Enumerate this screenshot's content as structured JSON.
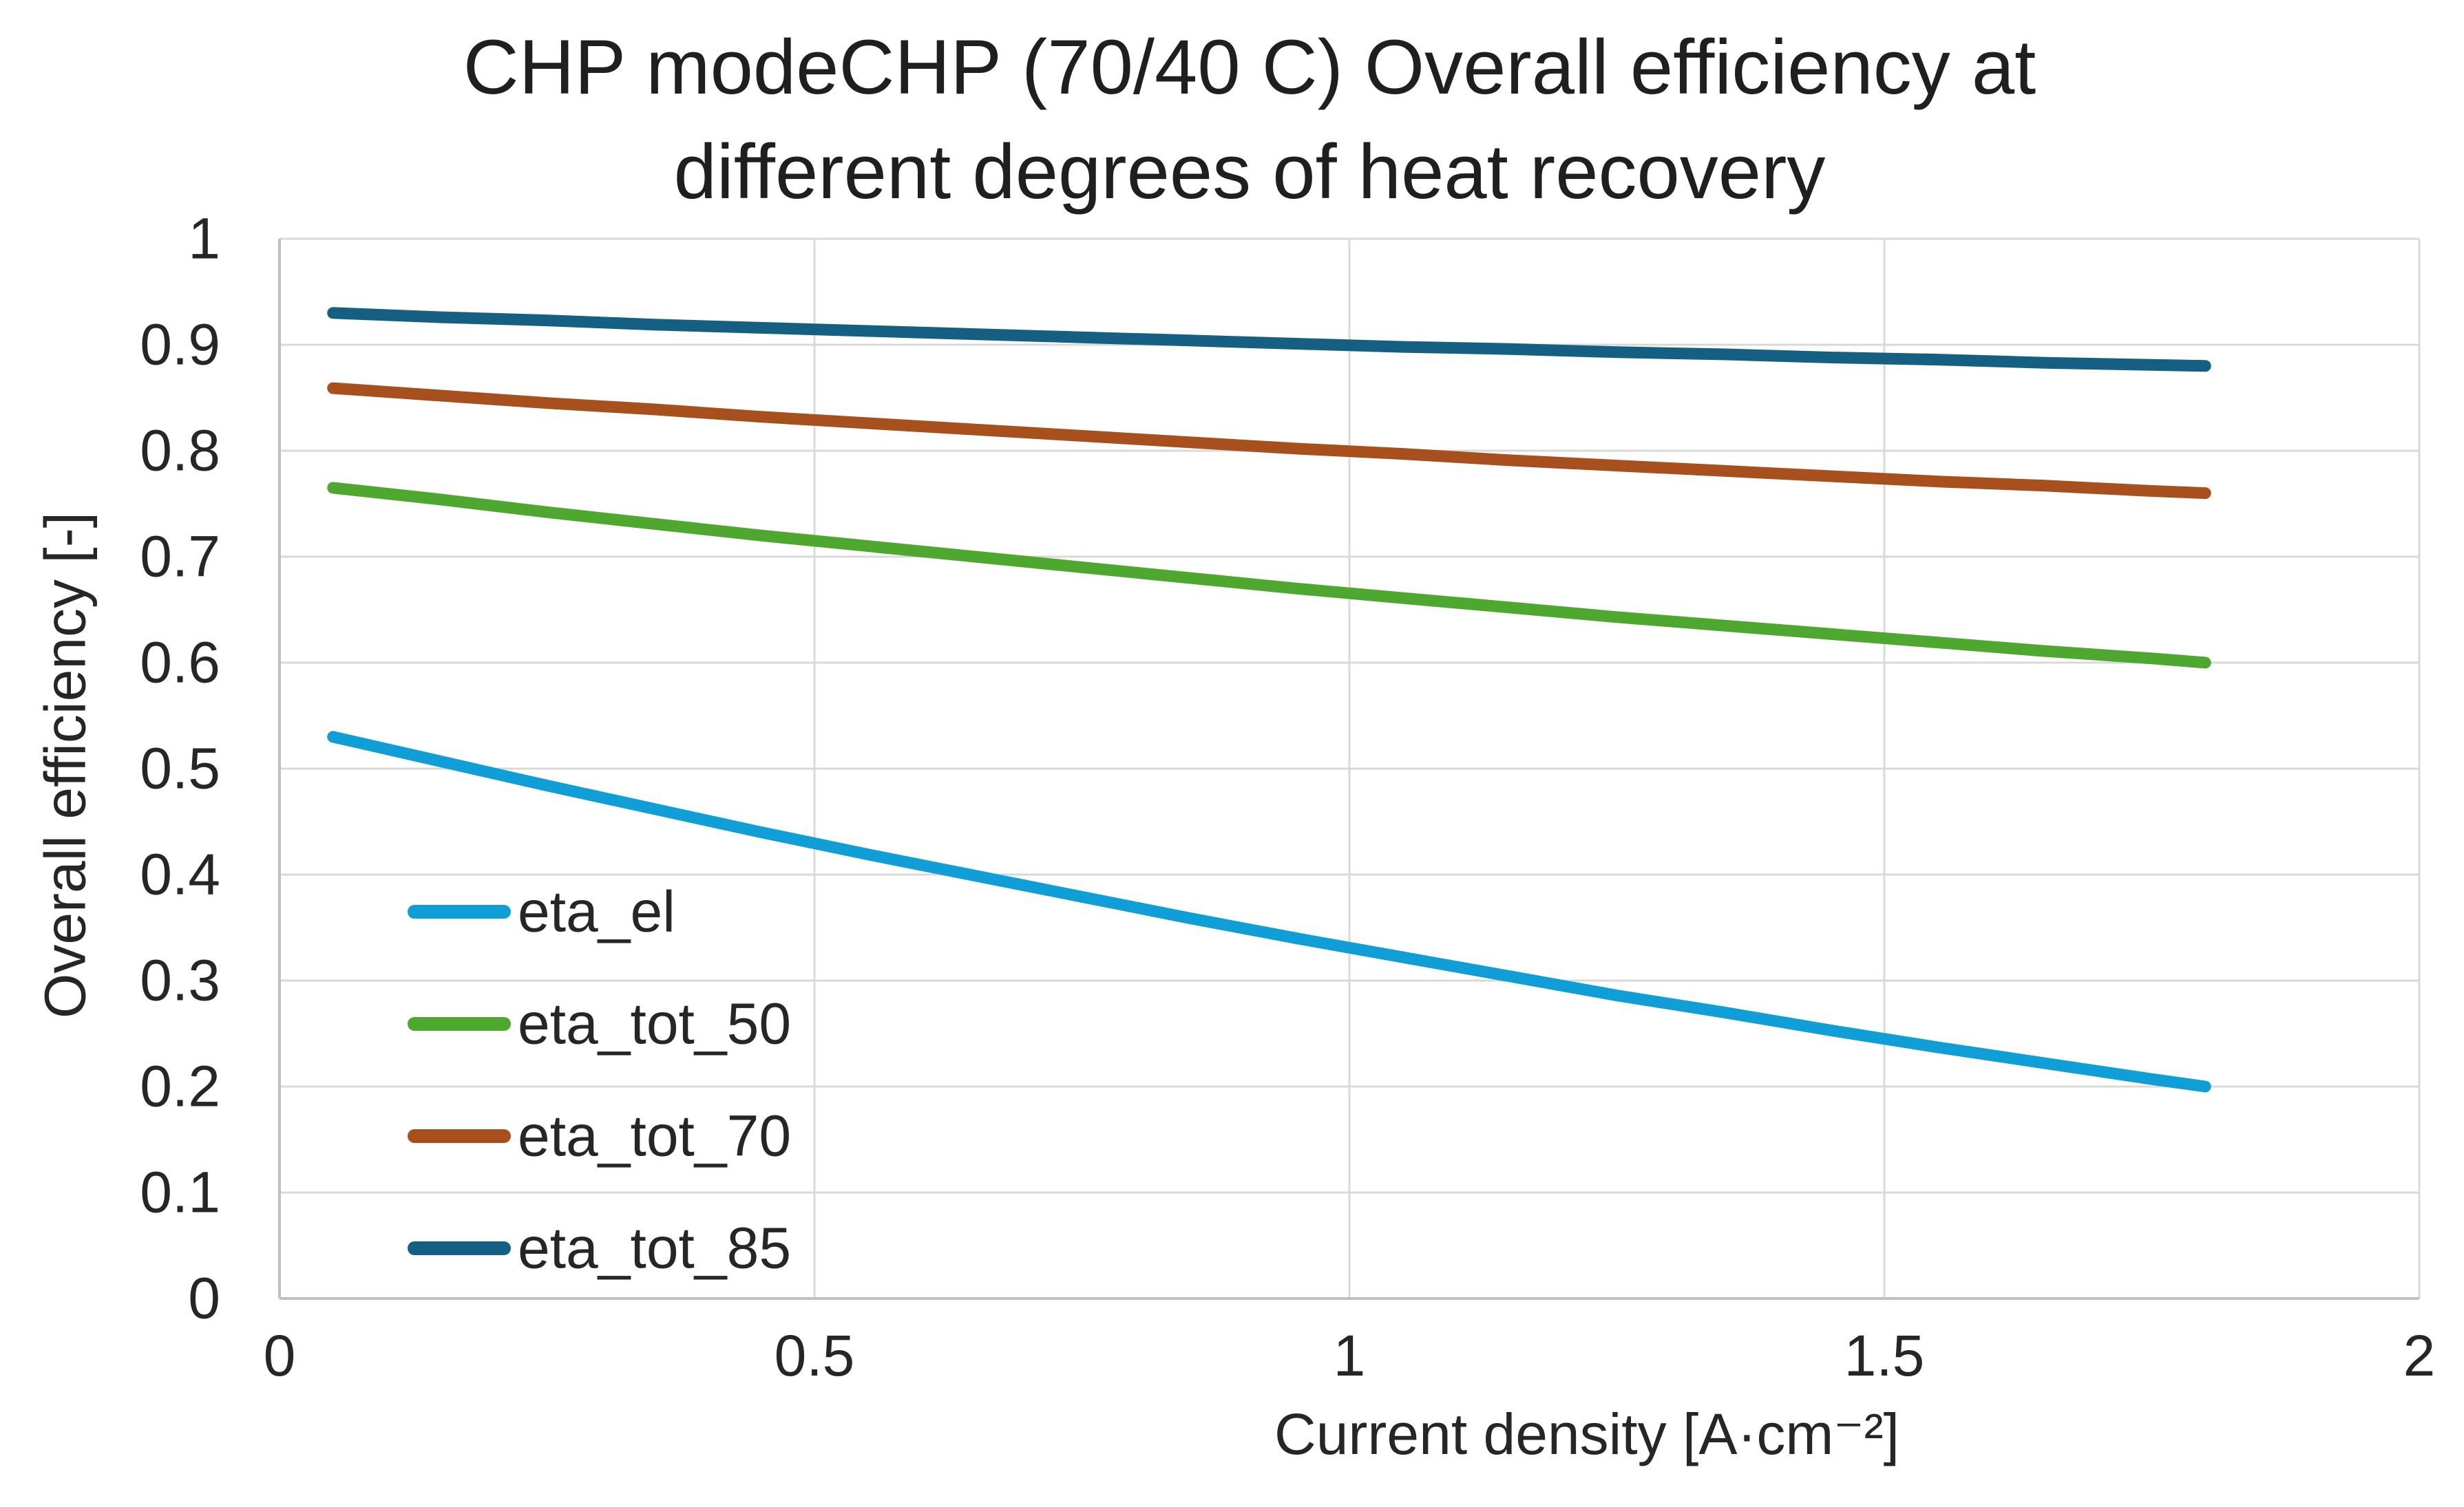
{
  "chart_data": {
    "type": "line",
    "title_lines": [
      "CHP modeCHP (70/40 C) Overall efficiency at",
      "different degrees of heat recovery"
    ],
    "xlabel": "Current density [A·cm⁻²]",
    "ylabel": "Overall efficiency [-]",
    "xlim": [
      0,
      2
    ],
    "ylim": [
      0,
      1
    ],
    "grid": true,
    "legend_position": "inside-left",
    "x_ticks": {
      "values": [
        0,
        0.5,
        1,
        1.5,
        2
      ],
      "labels": [
        "0",
        "0.5",
        "1",
        "1.5",
        "2"
      ]
    },
    "y_ticks": {
      "values": [
        1,
        0.9,
        0.8,
        0.7,
        0.6,
        0.5,
        0.4,
        0.3,
        0.2,
        0.1,
        0
      ],
      "labels": [
        "1",
        "0.9",
        "0.8",
        "0.7",
        "0.6",
        "0.5",
        "0.4",
        "0.3",
        "0.2",
        "0.1",
        "0"
      ]
    },
    "x": [
      0.05,
      0.15,
      0.25,
      0.35,
      0.45,
      0.55,
      0.65,
      0.75,
      0.85,
      0.95,
      1.05,
      1.15,
      1.25,
      1.35,
      1.45,
      1.55,
      1.65,
      1.75,
      1.8
    ],
    "series": [
      {
        "name": "eta_el",
        "color": "#0F9ED5",
        "values": [
          0.53,
          0.507,
          0.484,
          0.462,
          0.44,
          0.419,
          0.399,
          0.379,
          0.359,
          0.34,
          0.322,
          0.304,
          0.286,
          0.27,
          0.253,
          0.237,
          0.222,
          0.207,
          0.2
        ]
      },
      {
        "name": "eta_tot_50",
        "color": "#4EA72E",
        "values": [
          0.765,
          0.754,
          0.742,
          0.731,
          0.72,
          0.71,
          0.7,
          0.69,
          0.68,
          0.67,
          0.661,
          0.652,
          0.643,
          0.635,
          0.627,
          0.619,
          0.611,
          0.604,
          0.6
        ]
      },
      {
        "name": "eta_tot_70",
        "color": "#A8501D",
        "values": [
          0.859,
          0.852,
          0.845,
          0.839,
          0.832,
          0.826,
          0.82,
          0.814,
          0.808,
          0.802,
          0.797,
          0.791,
          0.786,
          0.781,
          0.776,
          0.771,
          0.767,
          0.762,
          0.76
        ]
      },
      {
        "name": "eta_tot_85",
        "color": "#156082",
        "values": [
          0.93,
          0.926,
          0.923,
          0.919,
          0.916,
          0.913,
          0.91,
          0.907,
          0.904,
          0.901,
          0.898,
          0.896,
          0.893,
          0.891,
          0.888,
          0.886,
          0.883,
          0.881,
          0.88
        ]
      }
    ],
    "colors": {
      "gridline": "#D9D9D9",
      "axis_line": "#BFBFBF",
      "text": "#262626",
      "title_text": "#1F1F1F",
      "background": "#FFFFFF"
    }
  }
}
